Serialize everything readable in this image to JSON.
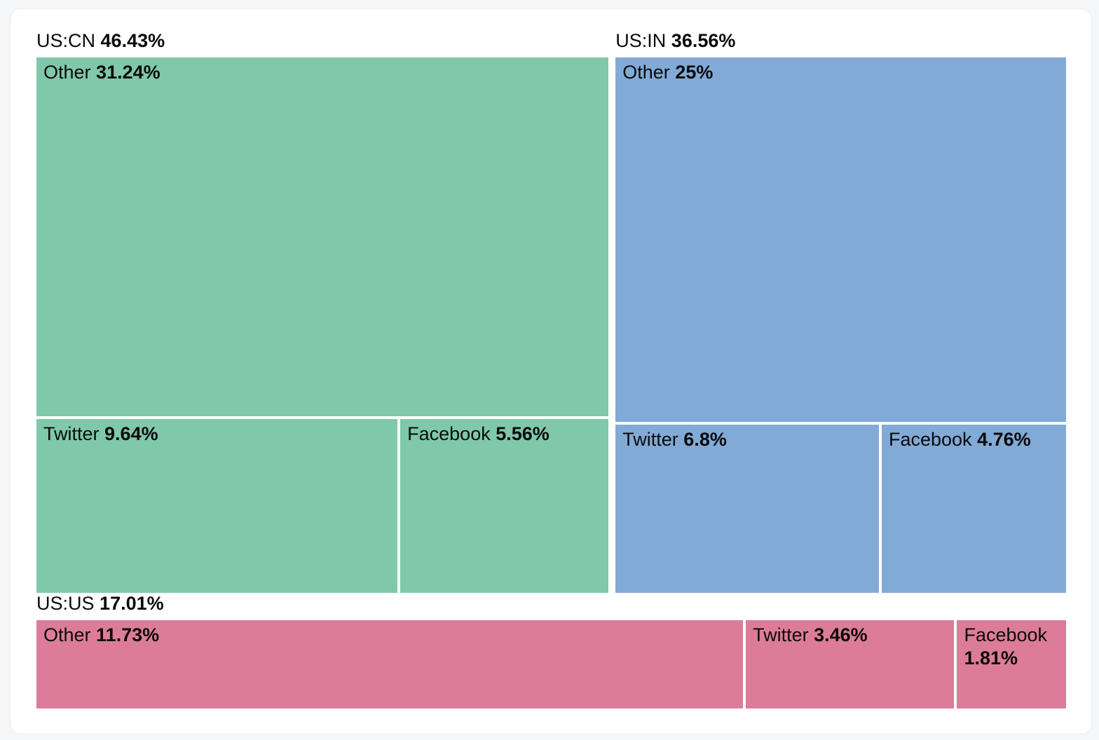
{
  "page": {
    "background_color": "#F5F6F8",
    "card_background_color": "#FFFFFF",
    "text_color": "#0A0A0A"
  },
  "chart_data": {
    "type": "treemap",
    "title": "",
    "legend": "none",
    "layout_hint": "US:CN and US:IN side by side in top row; US:US spans full width in bottom row; within US:CN and US:IN the Other cell is a full-width top row with Twitter and Facebook side by side below; within US:US all three cells are in a single row; cell areas proportional to percentage values",
    "groups": [
      {
        "id": "us-cn",
        "label": "US:CN",
        "value": 46.43,
        "value_display": "46.43%",
        "color": "#80C8AA",
        "cells": [
          {
            "id": "other",
            "label": "Other",
            "value": 31.24,
            "value_display": "31.24%"
          },
          {
            "id": "twitter",
            "label": "Twitter",
            "value": 9.64,
            "value_display": "9.64%"
          },
          {
            "id": "facebook",
            "label": "Facebook",
            "value": 5.56,
            "value_display": "5.56%"
          }
        ]
      },
      {
        "id": "us-in",
        "label": "US:IN",
        "value": 36.56,
        "value_display": "36.56%",
        "color": "#82AAD7",
        "cells": [
          {
            "id": "other",
            "label": "Other",
            "value": 25,
            "value_display": "25%"
          },
          {
            "id": "twitter",
            "label": "Twitter",
            "value": 6.8,
            "value_display": "6.8%"
          },
          {
            "id": "facebook",
            "label": "Facebook",
            "value": 4.76,
            "value_display": "4.76%"
          }
        ]
      },
      {
        "id": "us-us",
        "label": "US:US",
        "value": 17.01,
        "value_display": "17.01%",
        "color": "#DD7C9A",
        "cells": [
          {
            "id": "other",
            "label": "Other",
            "value": 11.73,
            "value_display": "11.73%"
          },
          {
            "id": "twitter",
            "label": "Twitter",
            "value": 3.46,
            "value_display": "3.46%"
          },
          {
            "id": "facebook",
            "label": "Facebook",
            "value": 1.81,
            "value_display": "1.81%"
          }
        ]
      }
    ]
  }
}
